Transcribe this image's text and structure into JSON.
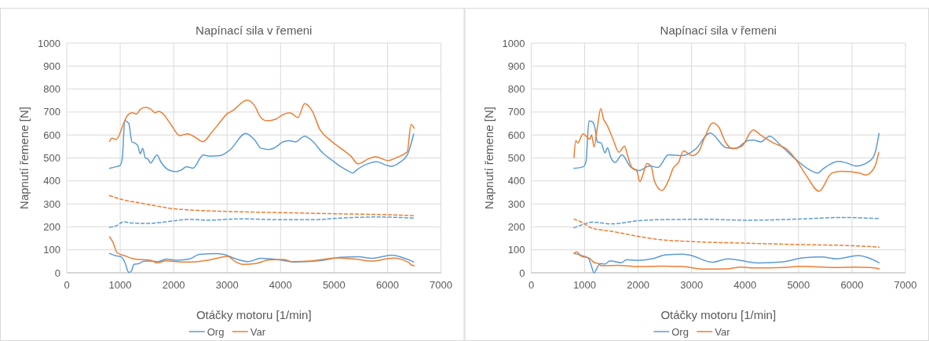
{
  "chart_data": [
    {
      "type": "line",
      "title": "Napínací sila v řemeni",
      "xlabel": "Otáčky motoru [1/min]",
      "ylabel": "Napnutí řemene [N]",
      "xlim": [
        0,
        7000
      ],
      "xticks": [
        0,
        1000,
        2000,
        3000,
        4000,
        5000,
        6000,
        7000
      ],
      "ylim": [
        0,
        1000
      ],
      "yticks": [
        0,
        100,
        200,
        300,
        400,
        500,
        600,
        700,
        800,
        900,
        1000
      ],
      "grid": true,
      "legend": "bottom",
      "series": [
        {
          "name": "Org",
          "color": "#5b9bd5",
          "x": [
            800,
            940,
            1000,
            1040,
            1085,
            1160,
            1220,
            1270,
            1330,
            1375,
            1420,
            1470,
            1520,
            1565,
            1690,
            1760,
            1905,
            2050,
            2145,
            2240,
            2360,
            2555,
            2670,
            2865,
            3055,
            3345,
            3510,
            3630,
            3780,
            3875,
            4065,
            4160,
            4280,
            4450,
            4590,
            4785,
            4975,
            5140,
            5265,
            5355,
            5410,
            5700,
            5790,
            5985,
            6080,
            6225,
            6370,
            6490
          ],
          "values": [
            455,
            463,
            468,
            500,
            662,
            650,
            570,
            565,
            553,
            518,
            542,
            500,
            495,
            478,
            513,
            483,
            448,
            440,
            448,
            462,
            456,
            513,
            508,
            510,
            535,
            607,
            580,
            543,
            537,
            543,
            572,
            575,
            570,
            595,
            575,
            523,
            488,
            460,
            443,
            434,
            445,
            480,
            484,
            468,
            464,
            480,
            513,
            604
          ]
        },
        {
          "name": "Var",
          "color": "#ed7d31",
          "x": [
            800,
            850,
            920,
            1085,
            1135,
            1230,
            1300,
            1375,
            1470,
            1565,
            1655,
            1720,
            1780,
            1950,
            2115,
            2260,
            2380,
            2550,
            2700,
            2840,
            3010,
            3105,
            3370,
            3510,
            3630,
            3750,
            3920,
            4040,
            4180,
            4325,
            4450,
            4590,
            4735,
            4925,
            5120,
            5315,
            5450,
            5650,
            5770,
            6010,
            6180,
            6370,
            6440,
            6500
          ],
          "values": [
            572,
            586,
            580,
            662,
            685,
            697,
            691,
            711,
            720,
            714,
            697,
            703,
            697,
            645,
            597,
            605,
            593,
            571,
            608,
            648,
            694,
            706,
            752,
            729,
            676,
            662,
            670,
            688,
            696,
            676,
            736,
            705,
            624,
            578,
            543,
            508,
            474,
            497,
            505,
            489,
            503,
            527,
            646,
            629
          ]
        },
        {
          "color": "#ed7d31",
          "line_style": "dashed",
          "x": [
            800,
            1085,
            1375,
            2000,
            2330,
            3010,
            4020,
            5030,
            5990,
            6490
          ],
          "values": [
            336,
            316,
            304,
            279,
            273,
            267,
            262,
            257,
            253,
            249
          ]
        },
        {
          "color": "#5b9bd5",
          "line_style": "dashed",
          "x": [
            800,
            940,
            1060,
            1200,
            1520,
            2000,
            2290,
            2625,
            3250,
            4020,
            4640,
            5030,
            5800,
            6490
          ],
          "values": [
            198,
            206,
            222,
            217,
            215,
            226,
            233,
            229,
            235,
            231,
            231,
            237,
            243,
            238
          ]
        },
        {
          "color": "#5b9bd5",
          "x": [
            800,
            920,
            1015,
            1085,
            1160,
            1210,
            1255,
            1350,
            1420,
            1520,
            1710,
            1860,
            2050,
            2290,
            2480,
            2815,
            2935,
            3200,
            3390,
            3630,
            4020,
            4260,
            4740,
            5120,
            5455,
            5700,
            6080,
            6320,
            6490
          ],
          "values": [
            84,
            74,
            70,
            47,
            2,
            8,
            37,
            40,
            49,
            51,
            49,
            60,
            55,
            60,
            80,
            84,
            80,
            58,
            49,
            63,
            55,
            47,
            53,
            67,
            70,
            63,
            77,
            63,
            47
          ]
        },
        {
          "color": "#ed7d31",
          "x": [
            800,
            870,
            940,
            1085,
            1275,
            1565,
            1690,
            1860,
            2145,
            2330,
            2670,
            3010,
            3150,
            3295,
            3530,
            3780,
            4065,
            4210,
            4545,
            5070,
            5455,
            5700,
            6110,
            6400,
            6440,
            6500
          ],
          "values": [
            157,
            130,
            88,
            74,
            60,
            55,
            43,
            52,
            47,
            47,
            56,
            72,
            49,
            37,
            40,
            56,
            58,
            49,
            51,
            65,
            58,
            51,
            64,
            45,
            35,
            31
          ]
        }
      ]
    },
    {
      "type": "line",
      "title": "Napínací sila v řemeni",
      "xlabel": "Otáčky motoru [1/min]",
      "ylabel": "Napnutí řemene [N]",
      "xlim": [
        0,
        7000
      ],
      "xticks": [
        0,
        1000,
        2000,
        3000,
        4000,
        5000,
        6000,
        7000
      ],
      "ylim": [
        0,
        1000
      ],
      "yticks": [
        0,
        100,
        200,
        300,
        400,
        500,
        600,
        700,
        800,
        900,
        1000
      ],
      "grid": true,
      "legend": "bottom",
      "series": [
        {
          "name": "Org",
          "color": "#5b9bd5",
          "x": [
            800,
            976,
            1024,
            1080,
            1142,
            1190,
            1237,
            1308,
            1380,
            1427,
            1488,
            1569,
            1697,
            1853,
            2019,
            2209,
            2374,
            2564,
            2825,
            3062,
            3346,
            3654,
            3820,
            4057,
            4152,
            4294,
            4460,
            4673,
            4910,
            5147,
            5360,
            5455,
            5739,
            5882,
            6071,
            6332,
            6427,
            6507
          ],
          "values": [
            455,
            462,
            485,
            661,
            658,
            633,
            570,
            565,
            522,
            544,
            502,
            480,
            514,
            462,
            445,
            465,
            459,
            514,
            510,
            536,
            608,
            544,
            542,
            576,
            578,
            570,
            595,
            553,
            502,
            457,
            434,
            452,
            485,
            480,
            465,
            487,
            519,
            607
          ]
        },
        {
          "name": "Var",
          "color": "#ed7d31",
          "x": [
            800,
            834,
            872,
            967,
            1095,
            1128,
            1175,
            1237,
            1299,
            1355,
            1403,
            1521,
            1640,
            1744,
            1806,
            1877,
            1972,
            2033,
            2090,
            2161,
            2246,
            2303,
            2445,
            2564,
            2659,
            2754,
            2848,
            3014,
            3133,
            3251,
            3393,
            3512,
            3630,
            3773,
            3938,
            4152,
            4294,
            4531,
            4791,
            4957,
            5147,
            5384,
            5621,
            5810,
            6142,
            6261,
            6427,
            6502
          ],
          "values": [
            502,
            576,
            565,
            605,
            582,
            601,
            548,
            633,
            715,
            667,
            650,
            587,
            525,
            551,
            508,
            460,
            445,
            397,
            428,
            476,
            462,
            400,
            358,
            400,
            457,
            480,
            531,
            510,
            528,
            593,
            653,
            633,
            570,
            540,
            551,
            622,
            599,
            565,
            536,
            491,
            423,
            355,
            434,
            442,
            434,
            426,
            462,
            525
          ]
        },
        {
          "color": "#5b9bd5",
          "line_style": "dashed",
          "x": [
            800,
            1000,
            1142,
            1498,
            2019,
            2351,
            3251,
            4010,
            5005,
            5810,
            6507
          ],
          "values": [
            196,
            213,
            221,
            213,
            227,
            231,
            233,
            229,
            234,
            241,
            236
          ]
        },
        {
          "color": "#ed7d31",
          "line_style": "dashed",
          "x": [
            800,
            1000,
            1118,
            1545,
            2019,
            2351,
            3014,
            4010,
            5005,
            6000,
            6507
          ],
          "values": [
            234,
            213,
            196,
            179,
            158,
            146,
            136,
            129,
            123,
            118,
            112
          ]
        },
        {
          "color": "#5b9bd5",
          "x": [
            800,
            976,
            1071,
            1118,
            1175,
            1223,
            1284,
            1380,
            1474,
            1687,
            1782,
            1972,
            2303,
            2493,
            2825,
            2967,
            3393,
            3678,
            4247,
            4720,
            5100,
            5431,
            5716,
            6118,
            6332,
            6507
          ],
          "values": [
            84,
            73,
            63,
            35,
            0,
            17,
            40,
            38,
            52,
            44,
            57,
            54,
            63,
            78,
            81,
            77,
            46,
            61,
            43,
            48,
            66,
            69,
            61,
            75,
            63,
            44
          ]
        },
        {
          "color": "#ed7d31",
          "x": [
            800,
            848,
            929,
            1095,
            1166,
            1261,
            1308,
            1640,
            1972,
            2445,
            2825,
            3251,
            3678,
            3915,
            4152,
            4720,
            5052,
            5668,
            6047,
            6356,
            6507
          ],
          "values": [
            84,
            91,
            73,
            63,
            46,
            40,
            31,
            32,
            27,
            29,
            27,
            16,
            17,
            25,
            21,
            23,
            28,
            23,
            25,
            23,
            17
          ]
        }
      ]
    }
  ]
}
